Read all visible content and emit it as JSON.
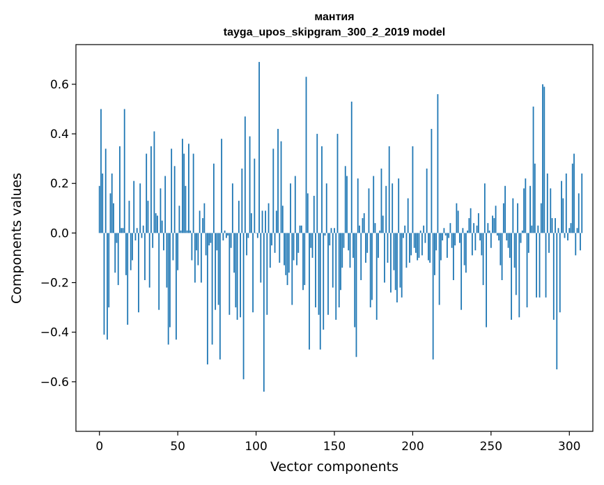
{
  "chart_data": {
    "type": "bar",
    "title_line1": "мантия",
    "title_line2": "tayga_upos_skipgram_300_2_2019 model",
    "xlabel": "Vector components",
    "ylabel": "Components values",
    "xlim": [
      -15,
      315
    ],
    "ylim": [
      -0.8,
      0.76
    ],
    "x_ticks": [
      0,
      50,
      100,
      150,
      200,
      250,
      300
    ],
    "x_tick_labels": [
      "0",
      "50",
      "100",
      "150",
      "200",
      "250",
      "300"
    ],
    "y_ticks": [
      -0.6,
      -0.4,
      -0.2,
      0.0,
      0.2,
      0.4,
      0.6
    ],
    "y_tick_labels": [
      "−0.6",
      "−0.4",
      "−0.2",
      "0.0",
      "0.2",
      "0.4",
      "0.6"
    ],
    "bar_color": "#1f77b4",
    "grid": false,
    "values": [
      0.19,
      0.5,
      0.24,
      -0.41,
      0.34,
      -0.43,
      -0.3,
      0.16,
      0.24,
      0.12,
      -0.16,
      -0.04,
      -0.21,
      0.35,
      0.02,
      0.02,
      0.5,
      -0.17,
      -0.37,
      0.13,
      -0.15,
      -0.11,
      0.21,
      -0.03,
      0.02,
      -0.32,
      0.2,
      -0.02,
      0.03,
      -0.19,
      0.32,
      0.13,
      -0.22,
      0.35,
      -0.06,
      0.41,
      0.08,
      0.07,
      -0.31,
      0.18,
      0.05,
      -0.07,
      0.23,
      -0.22,
      -0.45,
      -0.38,
      0.34,
      -0.11,
      0.27,
      -0.43,
      -0.15,
      0.11,
      0.01,
      0.38,
      0.32,
      0.19,
      0.01,
      0.36,
      0.01,
      -0.11,
      0.32,
      -0.2,
      -0.07,
      -0.13,
      0.09,
      -0.2,
      0.06,
      0.12,
      -0.09,
      -0.53,
      -0.05,
      -0.04,
      -0.45,
      0.28,
      -0.31,
      -0.07,
      -0.29,
      -0.51,
      0.38,
      -0.03,
      0.01,
      -0.02,
      -0.01,
      -0.33,
      -0.06,
      0.2,
      -0.16,
      -0.3,
      -0.35,
      0.13,
      -0.34,
      0.26,
      -0.59,
      0.47,
      -0.09,
      -0.02,
      0.39,
      0.08,
      -0.32,
      0.3,
      0.0,
      -0.02,
      0.69,
      -0.2,
      0.09,
      -0.64,
      0.09,
      -0.33,
      0.12,
      -0.14,
      -0.05,
      0.34,
      -0.08,
      0.09,
      0.42,
      -0.12,
      0.37,
      0.11,
      -0.13,
      -0.17,
      -0.21,
      -0.16,
      0.2,
      -0.29,
      -0.11,
      0.23,
      -0.13,
      -0.08,
      0.03,
      0.03,
      -0.23,
      -0.21,
      0.63,
      0.16,
      -0.47,
      -0.06,
      -0.1,
      0.15,
      -0.3,
      0.4,
      -0.33,
      -0.47,
      0.35,
      -0.39,
      -0.01,
      0.2,
      -0.33,
      -0.05,
      0.02,
      -0.22,
      0.02,
      -0.35,
      0.4,
      -0.3,
      -0.23,
      -0.14,
      -0.06,
      0.27,
      0.23,
      -0.07,
      -0.14,
      0.53,
      -0.1,
      -0.38,
      -0.5,
      0.22,
      0.03,
      -0.19,
      0.06,
      0.08,
      -0.12,
      -0.08,
      0.18,
      -0.3,
      -0.27,
      0.23,
      0.04,
      -0.35,
      -0.1,
      0.01,
      0.26,
      0.07,
      -0.2,
      0.19,
      -0.12,
      0.35,
      -0.24,
      0.2,
      -0.15,
      -0.23,
      -0.28,
      0.22,
      -0.22,
      -0.26,
      -0.02,
      0.03,
      -0.14,
      0.14,
      -0.12,
      -0.09,
      0.35,
      -0.06,
      -0.08,
      -0.11,
      -0.1,
      0.01,
      -0.09,
      0.03,
      -0.04,
      0.26,
      -0.11,
      -0.12,
      0.42,
      -0.51,
      -0.17,
      -0.07,
      0.56,
      -0.29,
      -0.11,
      -0.03,
      0.02,
      -0.01,
      -0.1,
      -0.02,
      0.04,
      -0.06,
      -0.19,
      -0.05,
      0.12,
      0.09,
      -0.04,
      -0.31,
      0.02,
      -0.13,
      -0.16,
      0.01,
      0.06,
      0.1,
      -0.09,
      0.04,
      -0.07,
      0.03,
      0.08,
      -0.03,
      -0.09,
      -0.21,
      0.2,
      -0.38,
      0.04,
      0.01,
      -0.06,
      0.07,
      0.06,
      0.11,
      -0.01,
      -0.03,
      -0.13,
      -0.19,
      0.12,
      0.19,
      -0.03,
      -0.06,
      -0.1,
      -0.35,
      0.14,
      -0.14,
      -0.25,
      0.12,
      -0.34,
      -0.04,
      0.01,
      0.18,
      0.22,
      -0.3,
      -0.08,
      0.19,
      0.03,
      0.51,
      0.28,
      -0.26,
      0.03,
      -0.26,
      0.12,
      0.6,
      0.59,
      -0.26,
      0.24,
      -0.08,
      0.18,
      0.06,
      -0.35,
      0.06,
      -0.55,
      0.02,
      -0.32,
      0.21,
      0.14,
      -0.02,
      0.24,
      -0.03,
      0.02,
      0.04,
      0.28,
      0.32,
      -0.09,
      0.02,
      0.16,
      -0.07,
      0.24
    ]
  }
}
